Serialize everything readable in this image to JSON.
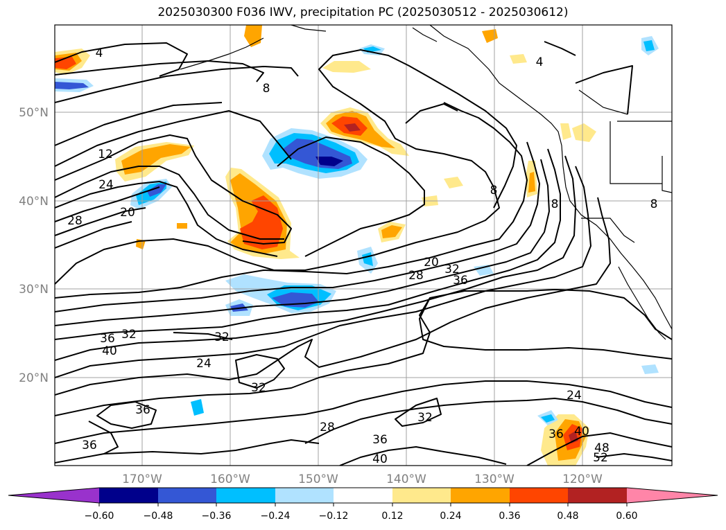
{
  "title": "2025030300 F036 IWV, precipitation PC (2025030512 - 2025030612)",
  "map": {
    "lat_ticks": [
      "50°N",
      "40°N",
      "30°N",
      "20°N"
    ],
    "lon_ticks": [
      "170°W",
      "160°W",
      "150°W",
      "140°W",
      "130°W",
      "120°W"
    ],
    "contour_labels": [
      "4",
      "4",
      "8",
      "8",
      "8",
      "8",
      "12",
      "20",
      "20",
      "24",
      "24",
      "24",
      "28",
      "28",
      "28",
      "32",
      "32",
      "32",
      "32",
      "32",
      "36",
      "36",
      "36",
      "36",
      "36",
      "36",
      "40",
      "40",
      "40",
      "48",
      "52"
    ]
  },
  "colorbar": {
    "tick_labels": [
      "−0.60",
      "−0.48",
      "−0.36",
      "−0.24",
      "−0.12",
      "0.12",
      "0.24",
      "0.36",
      "0.48",
      "0.60"
    ],
    "colors": [
      "#9932cc",
      "#00008b",
      "#3457d5",
      "#00bfff",
      "#b0e2ff",
      "#ffffff",
      "#ffe98c",
      "#ffa500",
      "#ff4500",
      "#b22222",
      "#ff85a8"
    ]
  }
}
